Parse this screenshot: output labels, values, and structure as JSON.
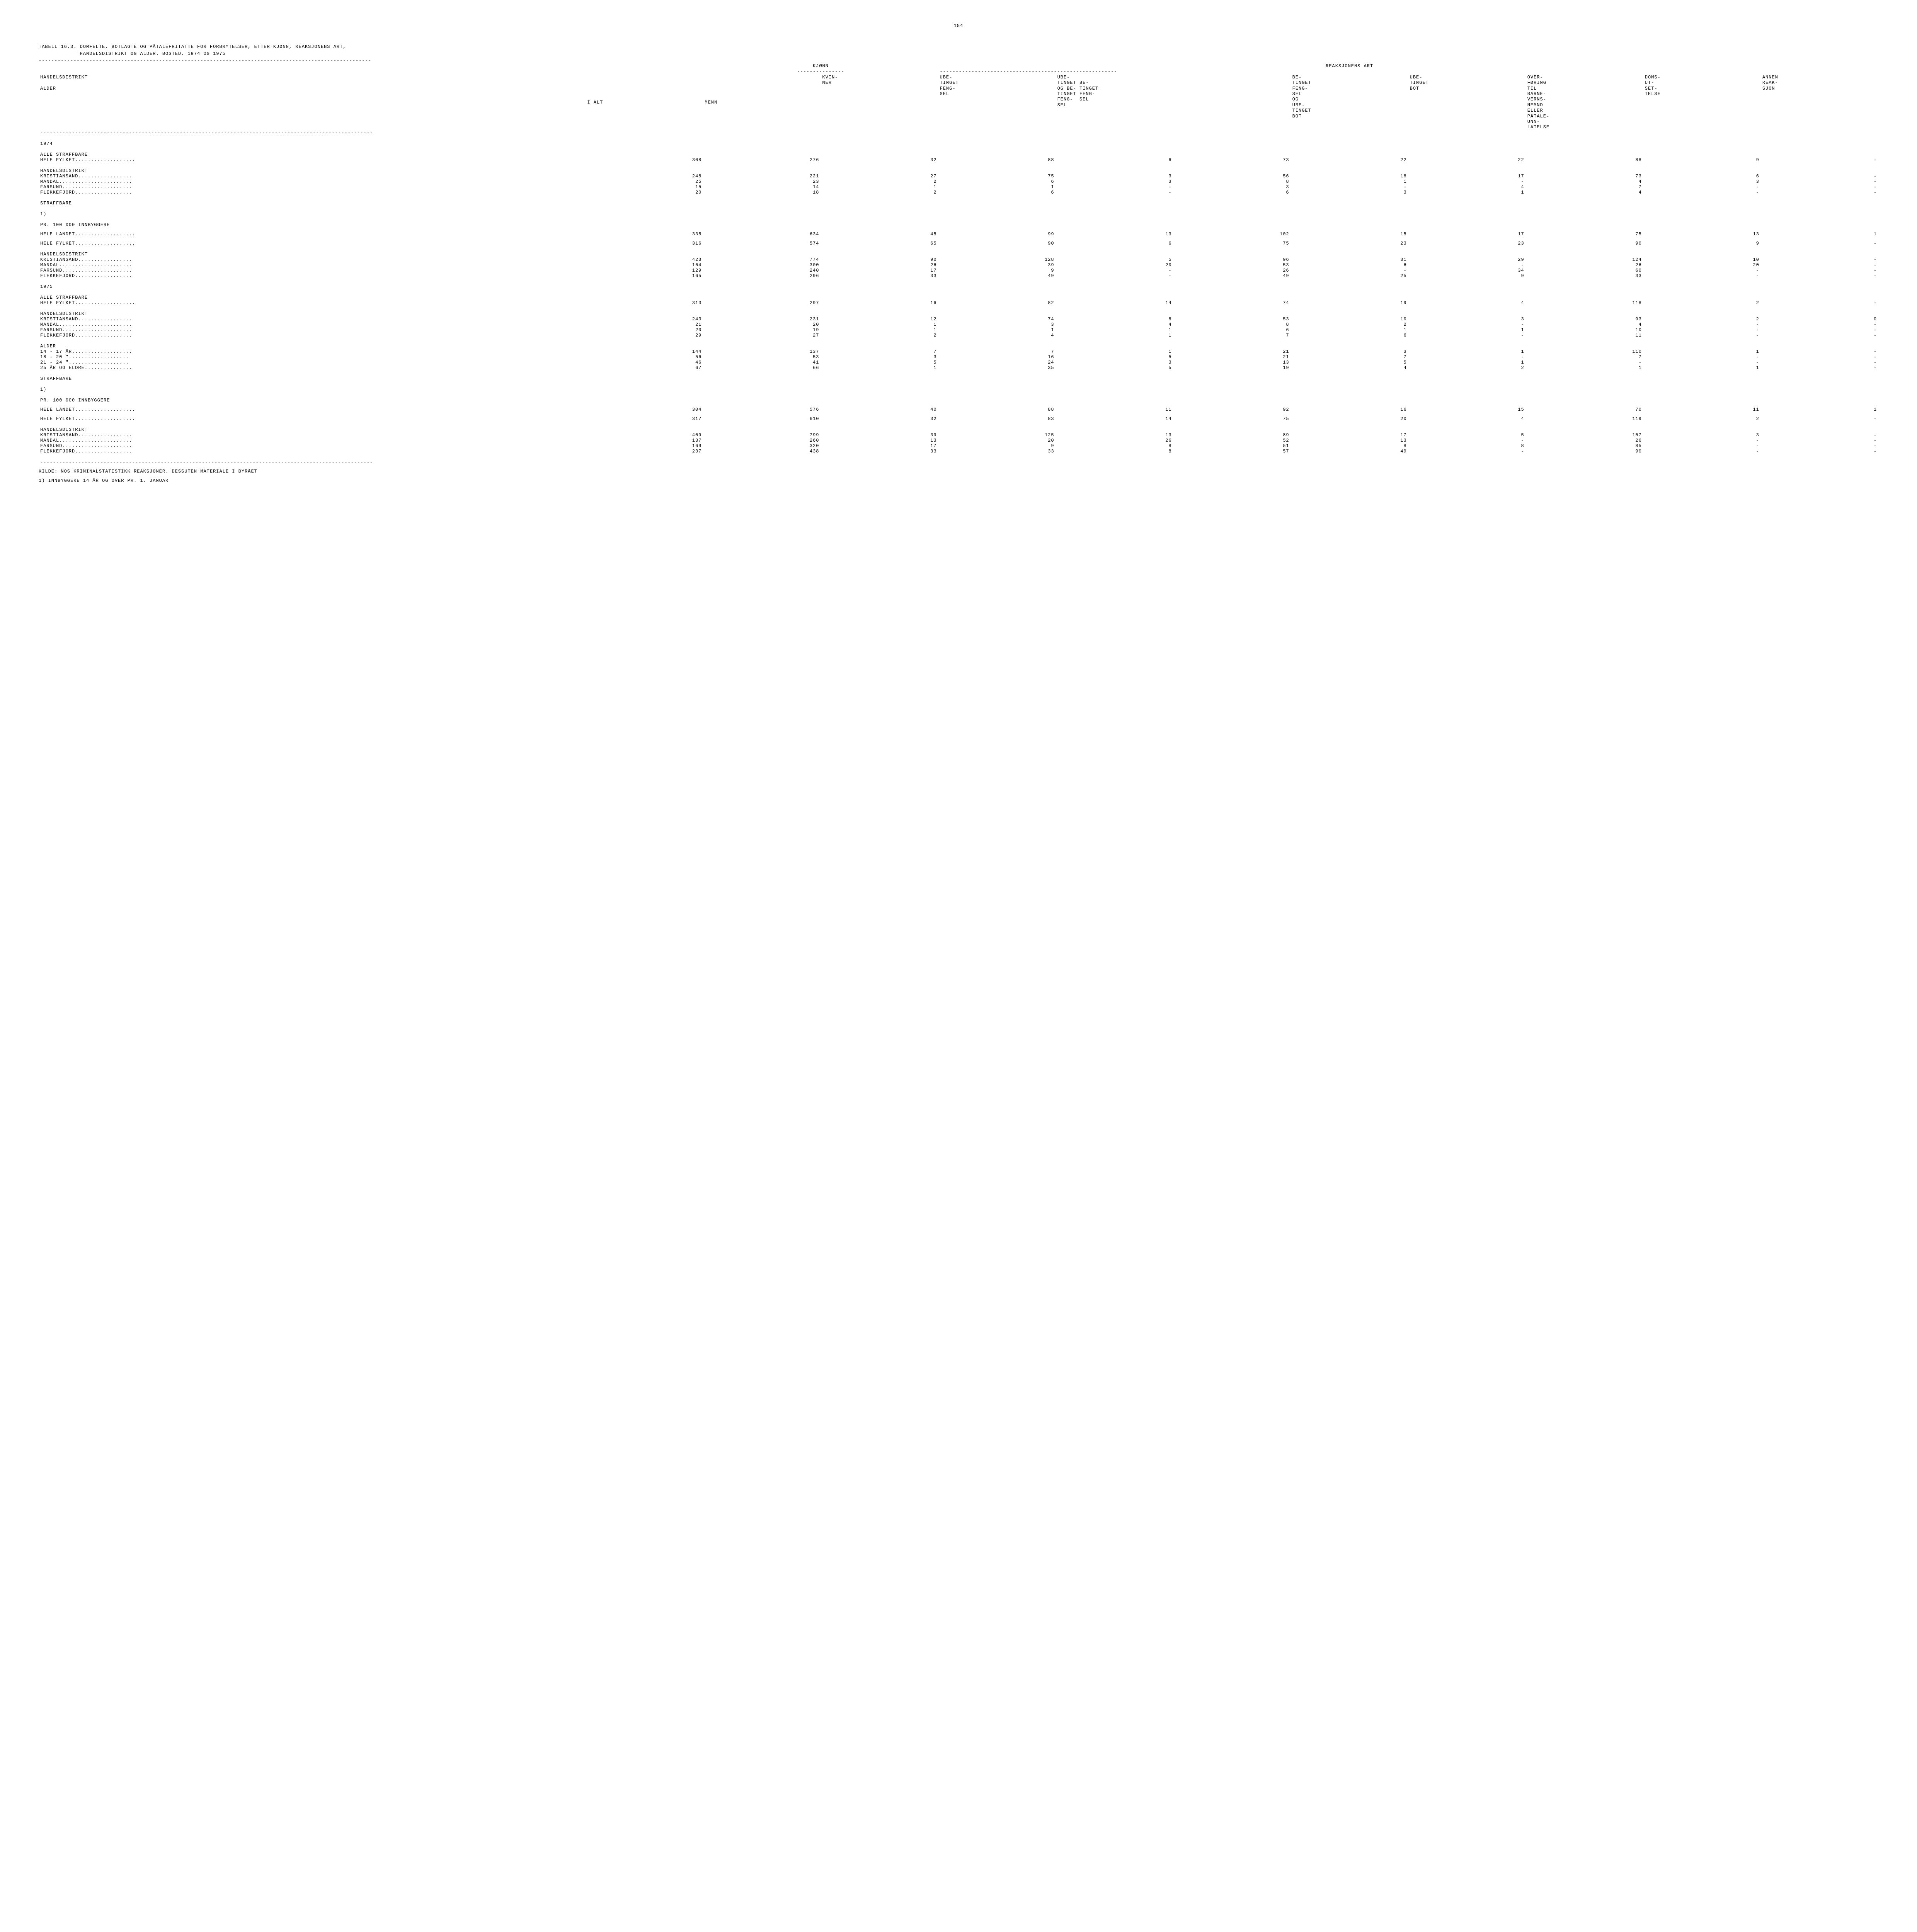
{
  "page_number": "154",
  "title_line1": "TABELL 16.3. DOMFELTE, BOTLAGTE OG PÅTALEFRITATTE FOR FORBRYTELSER, ETTER KJØNN, REAKSJONENS ART,",
  "title_line2": "             HANDELSDISTRIKT OG ALDER. BOSTED. 1974 OG 1975",
  "rule": "---------------------------------------------------------------------------------------------------------",
  "header_group1": "KJØNN",
  "header_group2": "REAKSJONENS ART",
  "header_short_rule1": "---------------",
  "header_short_rule2": "--------------------------------------------------------",
  "row_label_top": "HANDELSDISTRIKT",
  "row_label_bottom": "ALDER",
  "col_ialt": "I ALT",
  "col_menn": "MENN",
  "col_kvinner": "KVIN-\nNER",
  "col_ubefengsel": "UBE-\nTINGET\nFENG-\nSEL",
  "col_ubetingbetfeng": "UBE-\nTINGET BE-\nOG BE- TINGET\nTINGET FENG-\nFENG-  SEL\nSEL",
  "col_betingfengsel": "",
  "col_betingsel": "BE-\nTINGET\nFENG-\nSEL\nOG\nUBE-\nTINGET\nBOT",
  "col_ubetingbot": "UBE-\nTINGET\nBOT",
  "col_overforing": "OVER-\nFØRING\nTIL\nBARNE-\nVERNS-\nNEMND\nELLER\nPÅTALE-\nUNN-\nLATELSE",
  "col_domsutsettelse": "DOMS-\nUT-\nSET-\nTELSE",
  "col_annen": "ANNEN\nREAK-\nSJON",
  "sections": [
    {
      "type": "year",
      "label": "1974"
    },
    {
      "type": "heading",
      "label": "ALLE STRAFFBARE"
    },
    {
      "type": "row",
      "label": "HELE FYLKET",
      "vals": [
        "308",
        "276",
        "32",
        "88",
        "6",
        "73",
        "22",
        "22",
        "88",
        "9",
        "-"
      ]
    },
    {
      "type": "heading",
      "label": "HANDELSDISTRIKT"
    },
    {
      "type": "row",
      "label": " KRISTIANSAND",
      "vals": [
        "248",
        "221",
        "27",
        "75",
        "3",
        "56",
        "18",
        "17",
        "73",
        "6",
        "-"
      ]
    },
    {
      "type": "row",
      "label": " MANDAL",
      "vals": [
        "25",
        "23",
        "2",
        "6",
        "3",
        "8",
        "1",
        "-",
        "4",
        "3",
        "-"
      ]
    },
    {
      "type": "row",
      "label": " FARSUND",
      "vals": [
        "15",
        "14",
        "1",
        "1",
        "-",
        "3",
        "-",
        "4",
        "7",
        "-",
        "-"
      ]
    },
    {
      "type": "row",
      "label": " FLEKKEFJORD",
      "vals": [
        "20",
        "18",
        "2",
        "6",
        "-",
        "6",
        "3",
        "1",
        "4",
        "-",
        "-"
      ]
    },
    {
      "type": "heading",
      "label": "STRAFFBARE"
    },
    {
      "type": "heading",
      "label": "                  1)"
    },
    {
      "type": "heading",
      "label": "PR. 100 000 INNBYGGERE"
    },
    {
      "type": "spacer"
    },
    {
      "type": "row",
      "label": "HELE LANDET",
      "vals": [
        "335",
        "634",
        "45",
        "99",
        "13",
        "102",
        "15",
        "17",
        "75",
        "13",
        "1"
      ]
    },
    {
      "type": "spacer"
    },
    {
      "type": "row",
      "label": "HELE FYLKET",
      "vals": [
        "316",
        "574",
        "65",
        "90",
        "6",
        "75",
        "23",
        "23",
        "90",
        "9",
        "-"
      ]
    },
    {
      "type": "heading",
      "label": "HANDELSDISTRIKT"
    },
    {
      "type": "row",
      "label": " KRISTIANSAND",
      "vals": [
        "423",
        "774",
        "90",
        "128",
        "5",
        "96",
        "31",
        "29",
        "124",
        "10",
        "-"
      ]
    },
    {
      "type": "row",
      "label": " MANDAL",
      "vals": [
        "164",
        "300",
        "26",
        "39",
        "20",
        "53",
        "6",
        "-",
        "26",
        "20",
        "-"
      ]
    },
    {
      "type": "row",
      "label": " FARSUND",
      "vals": [
        "129",
        "240",
        "17",
        "9",
        "-",
        "26",
        "-",
        "34",
        "60",
        "-",
        "-"
      ]
    },
    {
      "type": "row",
      "label": " FLEKKEFJORD",
      "vals": [
        "165",
        "296",
        "33",
        "49",
        "-",
        "49",
        "25",
        "9",
        "33",
        "-",
        "-"
      ]
    },
    {
      "type": "year",
      "label": "1975"
    },
    {
      "type": "heading",
      "label": "ALLE STRAFFBARE"
    },
    {
      "type": "row",
      "label": "HELE FYLKET",
      "vals": [
        "313",
        "297",
        "16",
        "82",
        "14",
        "74",
        "19",
        "4",
        "118",
        "2",
        "-"
      ]
    },
    {
      "type": "heading",
      "label": "HANDELSDISTRIKT"
    },
    {
      "type": "row",
      "label": " KRISTIANSAND",
      "vals": [
        "243",
        "231",
        "12",
        "74",
        "8",
        "53",
        "10",
        "3",
        "93",
        "2",
        "0"
      ]
    },
    {
      "type": "row",
      "label": " MANDAL",
      "vals": [
        "21",
        "20",
        "1",
        "3",
        "4",
        "8",
        "2",
        "-",
        "4",
        "-",
        "-"
      ]
    },
    {
      "type": "row",
      "label": " FARSUND",
      "vals": [
        "20",
        "19",
        "1",
        "1",
        "1",
        "6",
        "1",
        "1",
        "10",
        "-",
        "-"
      ]
    },
    {
      "type": "row",
      "label": " FLEKKEFJORD",
      "vals": [
        "29",
        "27",
        "2",
        "4",
        "1",
        "7",
        "6",
        "-",
        "11",
        "-",
        "-"
      ]
    },
    {
      "type": "heading",
      "label": "ALDER"
    },
    {
      "type": "row",
      "label": " 14 - 17 ÅR",
      "vals": [
        "144",
        "137",
        "7",
        "7",
        "1",
        "21",
        "3",
        "1",
        "110",
        "1",
        "-"
      ]
    },
    {
      "type": "row",
      "label": " 18 - 20  \"",
      "vals": [
        "56",
        "53",
        "3",
        "16",
        "5",
        "21",
        "7",
        "-",
        "7",
        "-",
        "-"
      ]
    },
    {
      "type": "row",
      "label": " 21 - 24  \"",
      "vals": [
        "46",
        "41",
        "5",
        "24",
        "3",
        "13",
        "5",
        "1",
        "-",
        "-",
        "-"
      ]
    },
    {
      "type": "row",
      "label": " 25 ÅR OG ELDRE",
      "vals": [
        "67",
        "66",
        "1",
        "35",
        "5",
        "19",
        "4",
        "2",
        "1",
        "1",
        "-"
      ]
    },
    {
      "type": "heading",
      "label": "STRAFFBARE"
    },
    {
      "type": "heading",
      "label": "                  1)"
    },
    {
      "type": "heading",
      "label": "PR. 100 000 INNBYGGERE"
    },
    {
      "type": "spacer"
    },
    {
      "type": "row",
      "label": "HELE LANDET",
      "vals": [
        "304",
        "576",
        "40",
        "88",
        "11",
        "92",
        "16",
        "15",
        "70",
        "11",
        "1"
      ]
    },
    {
      "type": "spacer"
    },
    {
      "type": "row",
      "label": "HELE FYLKET",
      "vals": [
        "317",
        "610",
        "32",
        "83",
        "14",
        "75",
        "20",
        "4",
        "119",
        "2",
        "-"
      ]
    },
    {
      "type": "heading",
      "label": "HANDELSDISTRIKT"
    },
    {
      "type": "row",
      "label": " KRISTIANSAND",
      "vals": [
        "409",
        "799",
        "39",
        "125",
        "13",
        "89",
        "17",
        "5",
        "157",
        "3",
        "-"
      ]
    },
    {
      "type": "row",
      "label": " MANDAL",
      "vals": [
        "137",
        "260",
        "13",
        "20",
        "26",
        "52",
        "13",
        "-",
        "26",
        "-",
        "-"
      ]
    },
    {
      "type": "row",
      "label": " FARSUND",
      "vals": [
        "169",
        "320",
        "17",
        "9",
        "8",
        "51",
        "8",
        "8",
        "85",
        "-",
        "-"
      ]
    },
    {
      "type": "row",
      "label": " FLEKKEFJORD",
      "vals": [
        "237",
        "438",
        "33",
        "33",
        "8",
        "57",
        "49",
        "-",
        "90",
        "-",
        "-"
      ]
    }
  ],
  "footnote1": "KILDE: NOS KRIMINALSTATISTIKK REAKSJONER. DESSUTEN MATERIALE I BYRÅET",
  "footnote2": "1) INNBYGGERE 14 ÅR OG OVER PR. 1. JANUAR",
  "dots_fill": ".........................."
}
